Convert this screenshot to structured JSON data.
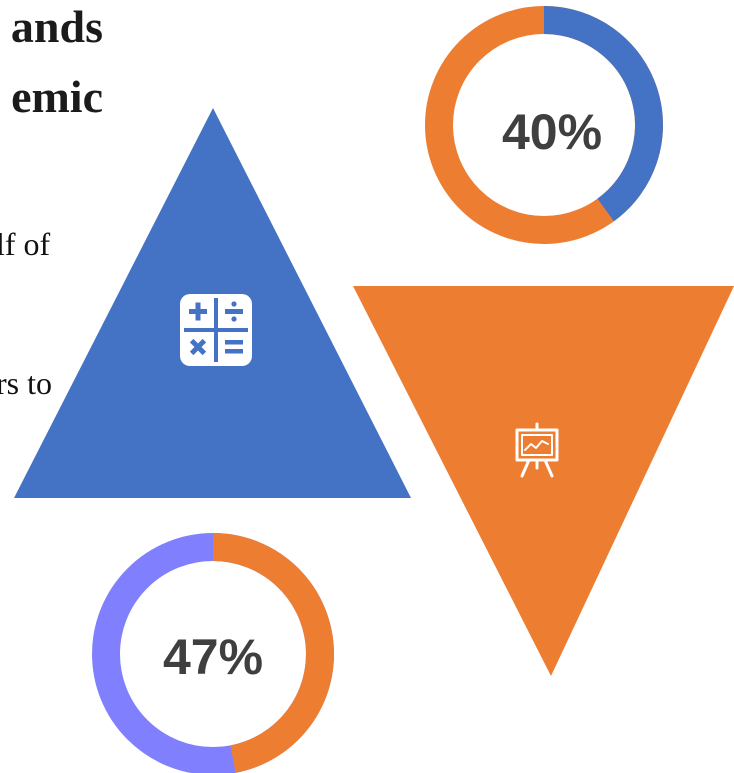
{
  "heading": {
    "line1": "ands",
    "line2": "emic"
  },
  "body_text": {
    "line1": "lf of",
    "line2": "rs to"
  },
  "stats": [
    {
      "label": "40%",
      "value": 40,
      "fill_color": "#4472c4",
      "track_color": "#ed7d31"
    },
    {
      "label": "47%",
      "value": 47,
      "fill_color": "#ed7d31",
      "track_color": "#8080ff"
    }
  ],
  "shapes": {
    "triangle_up": {
      "color": "#4472c4",
      "icon": "calculator-icon"
    },
    "triangle_down": {
      "color": "#ed7d31",
      "icon": "presentation-chart-icon"
    }
  }
}
